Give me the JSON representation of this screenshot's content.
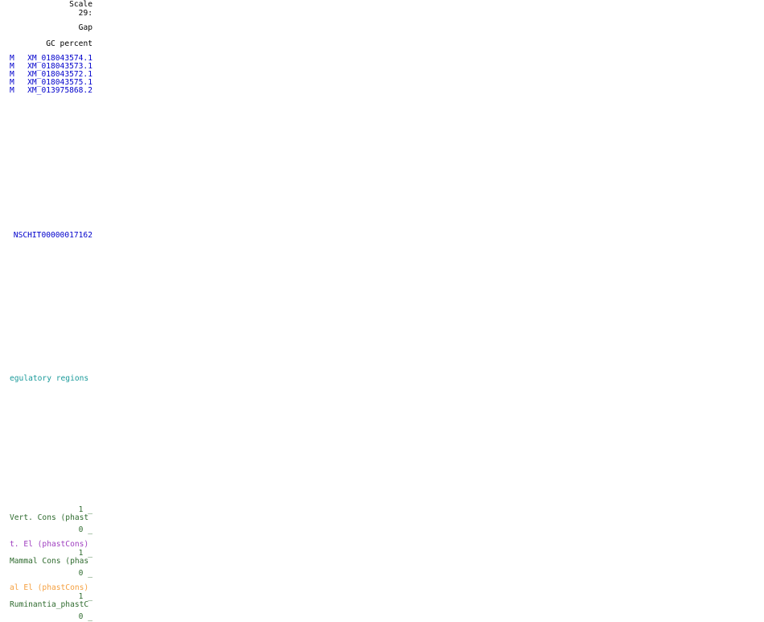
{
  "ruler": {
    "scale_label": "Scale",
    "chrom_label": "29:"
  },
  "tracks": {
    "gap": "Gap",
    "gc_percent": "GC percent",
    "refseq_genes": [
      {
        "prefix": "M",
        "name": "XM_018043574.1"
      },
      {
        "prefix": "M",
        "name": "XM_018043573.1"
      },
      {
        "prefix": "M",
        "name": "XM_018043572.1"
      },
      {
        "prefix": "M",
        "name": "XM_018043575.1"
      },
      {
        "prefix": "M",
        "name": "XM_013975868.2"
      }
    ],
    "ensembl_gene": "NSCHIT00000017162",
    "regulatory": "egulatory regions",
    "vert_cons": {
      "max": "1 _",
      "label": "Vert. Cons (phast",
      "min": "0 _"
    },
    "vert_el": "t. El (phastCons)",
    "mammal_cons": {
      "max": "1 _",
      "label": "Mammal Cons (phas",
      "min": "0 _"
    },
    "mammal_el": "al El (phastCons)",
    "ruminantia_cons": {
      "max": "1 _",
      "label": "Ruminantia_phastC",
      "min": "0 _"
    }
  },
  "colors": {
    "gene": "#0000cc",
    "regulatory": "#1a9a9a",
    "cons": "#2f6b2f",
    "vert_el": "#a040c0",
    "mammal_el": "#f5a040"
  }
}
